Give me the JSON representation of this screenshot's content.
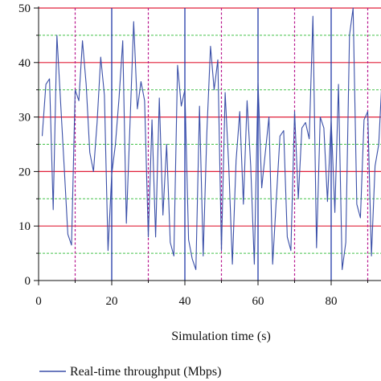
{
  "chart_data": {
    "type": "line",
    "title": "",
    "xlabel": "Simulation time (s)",
    "ylabel": "",
    "xlim": [
      0,
      95
    ],
    "ylim": [
      0,
      50
    ],
    "x_ticks": [
      "0",
      "20",
      "40",
      "60",
      "80"
    ],
    "y_ticks": [
      "0",
      "10",
      "20",
      "30",
      "40",
      "50"
    ],
    "grid": {
      "red_solid_horizontal_at": [
        10,
        20,
        30,
        40,
        50
      ],
      "green_dashed_horizontal_at": [
        5,
        15,
        25,
        35,
        45
      ],
      "blue_solid_vertical_at": [
        20,
        40,
        60,
        80
      ],
      "purple_dashed_vertical_at": [
        10,
        30,
        50,
        70,
        90
      ]
    },
    "legend_placement": "bottom-left",
    "series": [
      {
        "name": "Real-time throughput (Mbps)",
        "color": "#3a4fa8",
        "x": [
          1,
          2,
          3,
          4,
          5,
          6,
          7,
          8,
          9,
          10,
          11,
          12,
          13,
          14,
          15,
          16,
          17,
          18,
          19,
          20,
          21,
          22,
          23,
          24,
          25,
          26,
          27,
          28,
          29,
          30,
          31,
          32,
          33,
          34,
          35,
          36,
          37,
          38,
          39,
          40,
          41,
          42,
          43,
          44,
          45,
          46,
          47,
          48,
          49,
          50,
          51,
          52,
          53,
          54,
          55,
          56,
          57,
          58,
          59,
          60,
          61,
          62,
          63,
          64,
          65,
          66,
          67,
          68,
          69,
          70,
          71,
          72,
          73,
          74,
          75,
          76,
          77,
          78,
          79,
          80,
          81,
          82,
          83,
          84,
          85,
          86,
          87,
          88,
          89,
          90,
          91,
          92,
          93,
          94,
          95
        ],
        "values": [
          26.5,
          36,
          37,
          13,
          45,
          33,
          21,
          8.5,
          6.5,
          35,
          33,
          44,
          36,
          23.5,
          20,
          29,
          41,
          34,
          5.5,
          19.5,
          25,
          33.5,
          44,
          10.5,
          29,
          47.5,
          31.5,
          36.5,
          33,
          8,
          29.5,
          8,
          33.5,
          12,
          25,
          7,
          4.5,
          39.5,
          32,
          35,
          7.5,
          4,
          2,
          32,
          4.5,
          27,
          43,
          35,
          40.5,
          5.5,
          34.5,
          21,
          3,
          22,
          31,
          14,
          33,
          21,
          3,
          36.5,
          17,
          23.5,
          30,
          3,
          15,
          26.5,
          27.5,
          8,
          5.5,
          31,
          15,
          28,
          29,
          26,
          48.5,
          6,
          30,
          28,
          14.5,
          29.5,
          12.5,
          36,
          2,
          7,
          45,
          50,
          14,
          11.5,
          29.5,
          31,
          4.5,
          21,
          25,
          38.5,
          27
        ]
      }
    ]
  }
}
